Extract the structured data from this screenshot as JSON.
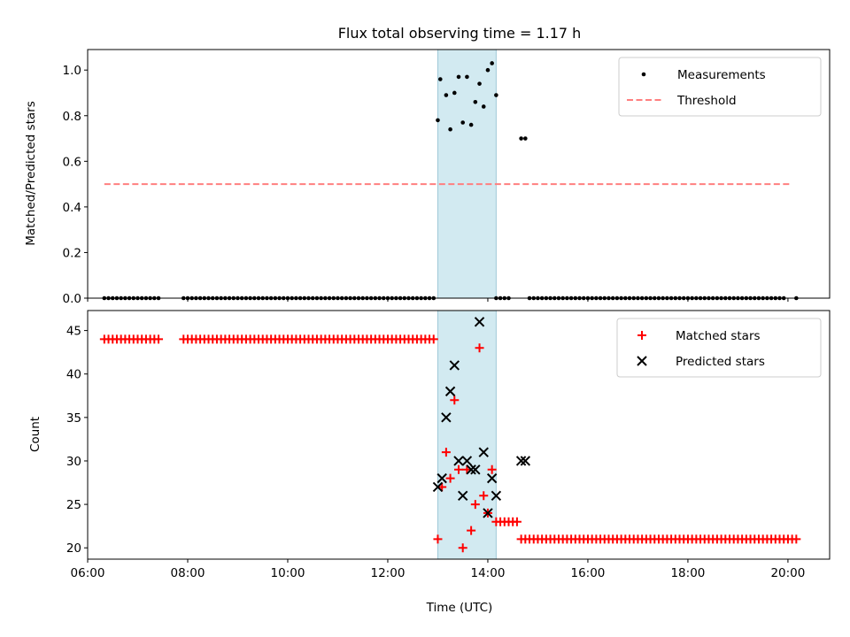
{
  "figure": {
    "title": "Flux total observing time = 1.17 h",
    "xlabel": "Time (UTC)"
  },
  "colors": {
    "measurements": "#000000",
    "threshold": "#ff7f7f",
    "matched": "#ff0000",
    "predicted": "#000000",
    "highlight_fill": "#add8e6",
    "highlight_edge": "#9fc9d8"
  },
  "chart_data": [
    {
      "type": "scatter",
      "panel": "top",
      "ylabel": "Matched/Predicted stars",
      "xlim": [
        "06:00",
        "20:50"
      ],
      "ylim": [
        0.0,
        1.09
      ],
      "yticks": [
        0.0,
        0.2,
        0.4,
        0.6,
        0.8,
        1.0
      ],
      "ytick_labels": [
        "0.0",
        "0.2",
        "0.4",
        "0.6",
        "0.8",
        "1.0"
      ],
      "x_ticks_visible": false,
      "grid": false,
      "legend": {
        "position": "top-right",
        "entries": [
          "Measurements",
          "Threshold"
        ]
      },
      "highlight_span": [
        "13:00",
        "14:10"
      ],
      "threshold": {
        "name": "Threshold",
        "y": 0.5,
        "x": [
          "06:20",
          "20:05"
        ],
        "style": "dashed"
      },
      "series": [
        {
          "name": "Measurements",
          "zero_segments": [
            {
              "from": "06:20",
              "to": "07:25",
              "step_min": 5
            },
            {
              "from": "07:55",
              "to": "12:55",
              "step_min": 5
            },
            {
              "from": "14:10",
              "to": "14:25",
              "step_min": 5
            },
            {
              "from": "14:50",
              "to": "19:55",
              "step_min": 5
            },
            {
              "from": "20:10",
              "to": "20:10",
              "step_min": 5
            }
          ],
          "points": [
            {
              "x": "13:00",
              "y": 0.78
            },
            {
              "x": "13:03",
              "y": 0.96
            },
            {
              "x": "13:10",
              "y": 0.89
            },
            {
              "x": "13:15",
              "y": 0.74
            },
            {
              "x": "13:20",
              "y": 0.9
            },
            {
              "x": "13:25",
              "y": 0.97
            },
            {
              "x": "13:30",
              "y": 0.77
            },
            {
              "x": "13:35",
              "y": 0.97
            },
            {
              "x": "13:40",
              "y": 0.76
            },
            {
              "x": "13:45",
              "y": 0.86
            },
            {
              "x": "13:50",
              "y": 0.94
            },
            {
              "x": "13:55",
              "y": 0.84
            },
            {
              "x": "14:00",
              "y": 1.0
            },
            {
              "x": "14:05",
              "y": 1.03
            },
            {
              "x": "14:10",
              "y": 0.89
            },
            {
              "x": "14:40",
              "y": 0.7
            },
            {
              "x": "14:45",
              "y": 0.7
            }
          ]
        }
      ]
    },
    {
      "type": "scatter",
      "panel": "bottom",
      "ylabel": "Count",
      "xlim": [
        "06:00",
        "20:50"
      ],
      "ylim": [
        18.7,
        47.3
      ],
      "yticks": [
        20,
        25,
        30,
        35,
        40,
        45
      ],
      "ytick_labels": [
        "20",
        "25",
        "30",
        "35",
        "40",
        "45"
      ],
      "xticks": [
        "06:00",
        "08:00",
        "10:00",
        "12:00",
        "14:00",
        "16:00",
        "18:00",
        "20:00"
      ],
      "grid": false,
      "legend": {
        "position": "top-right",
        "entries": [
          "Matched stars",
          "Predicted stars"
        ]
      },
      "highlight_span": [
        "13:00",
        "14:10"
      ],
      "series": [
        {
          "name": "Matched stars",
          "marker": "+",
          "constant_segments": [
            {
              "from": "06:20",
              "to": "07:25",
              "step_min": 5,
              "y": 44
            },
            {
              "from": "07:55",
              "to": "12:55",
              "step_min": 5,
              "y": 44
            },
            {
              "from": "14:10",
              "to": "14:35",
              "step_min": 5,
              "y": 23
            },
            {
              "from": "14:40",
              "to": "20:10",
              "step_min": 5,
              "y": 21
            }
          ],
          "points": [
            {
              "x": "13:00",
              "y": 21
            },
            {
              "x": "13:05",
              "y": 27
            },
            {
              "x": "13:10",
              "y": 31
            },
            {
              "x": "13:15",
              "y": 28
            },
            {
              "x": "13:20",
              "y": 37
            },
            {
              "x": "13:25",
              "y": 29
            },
            {
              "x": "13:30",
              "y": 20
            },
            {
              "x": "13:35",
              "y": 29
            },
            {
              "x": "13:40",
              "y": 22
            },
            {
              "x": "13:45",
              "y": 25
            },
            {
              "x": "13:50",
              "y": 43
            },
            {
              "x": "13:55",
              "y": 26
            },
            {
              "x": "14:00",
              "y": 24
            },
            {
              "x": "14:05",
              "y": 29
            }
          ]
        },
        {
          "name": "Predicted stars",
          "marker": "x",
          "points": [
            {
              "x": "13:00",
              "y": 27
            },
            {
              "x": "13:05",
              "y": 28
            },
            {
              "x": "13:10",
              "y": 35
            },
            {
              "x": "13:15",
              "y": 38
            },
            {
              "x": "13:20",
              "y": 41
            },
            {
              "x": "13:25",
              "y": 30
            },
            {
              "x": "13:30",
              "y": 26
            },
            {
              "x": "13:35",
              "y": 30
            },
            {
              "x": "13:40",
              "y": 29
            },
            {
              "x": "13:45",
              "y": 29
            },
            {
              "x": "13:50",
              "y": 46
            },
            {
              "x": "13:55",
              "y": 31
            },
            {
              "x": "14:00",
              "y": 24
            },
            {
              "x": "14:05",
              "y": 28
            },
            {
              "x": "14:10",
              "y": 26
            },
            {
              "x": "14:40",
              "y": 30
            },
            {
              "x": "14:45",
              "y": 30
            }
          ]
        }
      ]
    }
  ]
}
